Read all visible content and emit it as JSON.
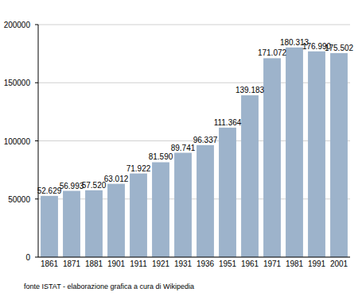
{
  "chart_data": {
    "type": "bar",
    "categories": [
      "1861",
      "1871",
      "1881",
      "1901",
      "1911",
      "1921",
      "1931",
      "1936",
      "1951",
      "1961",
      "1971",
      "1981",
      "1991",
      "2001"
    ],
    "values": [
      52629,
      56993,
      57520,
      63012,
      71922,
      81590,
      89741,
      96337,
      111364,
      139183,
      171072,
      180313,
      176990,
      175502
    ],
    "value_labels": [
      "52.629",
      "56.993",
      "57.520",
      "63.012",
      "71.922",
      "81.590",
      "89.741",
      "96.337",
      "111.364",
      "139.183",
      "171.072",
      "180.313",
      "176.990",
      "175.502"
    ],
    "color": "#9db3cb",
    "ylim": [
      0,
      200000
    ],
    "yticks": [
      0,
      50000,
      100000,
      150000,
      200000
    ],
    "grid": true,
    "data_labels": true,
    "source": "fonte ISTAT - elaborazione grafica a cura di Wikipedia"
  }
}
